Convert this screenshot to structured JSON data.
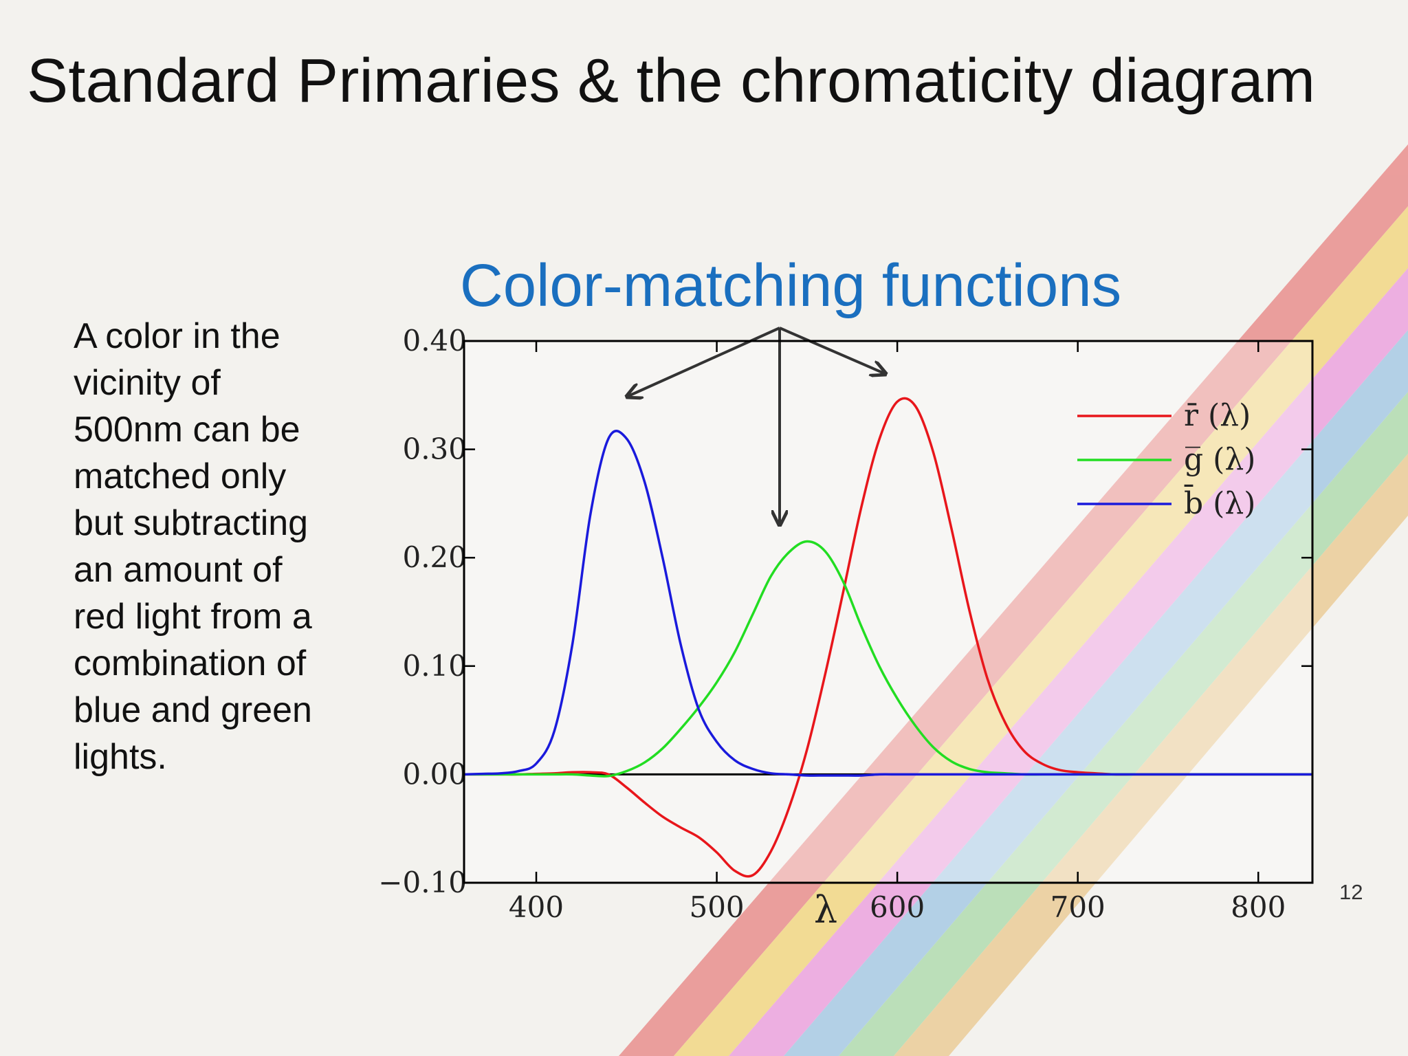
{
  "header": {
    "title": "Standard Primaries & the chromaticity diagram"
  },
  "body": {
    "lines": [
      "A color in the",
      "vicinity of",
      "500nm can be",
      "matched only",
      "but subtracting",
      "an amount of",
      "red light from a",
      "combination of",
      "blue and green",
      "lights."
    ]
  },
  "page_number": "12",
  "chart_data": {
    "type": "line",
    "title": "Color-matching functions",
    "x_label": "λ",
    "x": [
      360,
      370,
      380,
      390,
      400,
      410,
      420,
      430,
      440,
      450,
      460,
      470,
      480,
      490,
      500,
      510,
      520,
      530,
      540,
      550,
      560,
      570,
      580,
      590,
      600,
      610,
      620,
      630,
      640,
      650,
      660,
      670,
      680,
      690,
      700,
      710,
      720,
      730,
      740,
      750,
      760,
      770,
      780,
      790,
      800,
      810,
      820,
      830
    ],
    "series": [
      {
        "name": "r̄ (λ)",
        "color": "#e8161b",
        "values": [
          0,
          0,
          0,
          0,
          0.0005,
          0.001,
          0.002,
          0.002,
          0,
          -0.012,
          -0.026,
          -0.039,
          -0.049,
          -0.058,
          -0.072,
          -0.089,
          -0.093,
          -0.071,
          -0.031,
          0.023,
          0.092,
          0.168,
          0.246,
          0.309,
          0.344,
          0.34,
          0.297,
          0.227,
          0.151,
          0.088,
          0.047,
          0.022,
          0.01,
          0.004,
          0.002,
          0.001,
          0,
          0,
          0,
          0,
          0,
          0,
          0,
          0,
          0,
          0,
          0,
          0
        ]
      },
      {
        "name": "g̅ (λ)",
        "color": "#22dd22",
        "values": [
          0,
          0,
          0,
          0,
          0,
          0,
          0,
          -0.001,
          -0.0015,
          0.003,
          0.011,
          0.024,
          0.042,
          0.062,
          0.085,
          0.113,
          0.148,
          0.183,
          0.205,
          0.215,
          0.206,
          0.178,
          0.137,
          0.1,
          0.07,
          0.045,
          0.025,
          0.012,
          0.005,
          0.002,
          0.001,
          0,
          0,
          0,
          0,
          0,
          0,
          0,
          0,
          0,
          0,
          0,
          0,
          0,
          0,
          0,
          0,
          0
        ]
      },
      {
        "name": "b̄ (λ)",
        "color": "#1a1adc",
        "values": [
          0,
          0.0005,
          0.001,
          0.003,
          0.01,
          0.04,
          0.12,
          0.24,
          0.31,
          0.31,
          0.27,
          0.2,
          0.12,
          0.06,
          0.03,
          0.013,
          0.005,
          0.001,
          0,
          -0.001,
          -0.001,
          -0.001,
          -0.001,
          0,
          0,
          0,
          0,
          0,
          0,
          0,
          0,
          0,
          0,
          0,
          0,
          0,
          0,
          0,
          0,
          0,
          0,
          0,
          0,
          0,
          0,
          0,
          0,
          0
        ]
      }
    ],
    "xlim": [
      360,
      830
    ],
    "ylim": [
      -0.1,
      0.4
    ],
    "xticks": [
      400,
      500,
      600,
      700,
      800
    ],
    "yticks": [
      {
        "value": -0.1,
        "label": "−0.10"
      },
      {
        "value": 0,
        "label": "0.00"
      },
      {
        "value": 0.1,
        "label": "0.10"
      },
      {
        "value": 0.2,
        "label": "0.20"
      },
      {
        "value": 0.3,
        "label": "0.30"
      },
      {
        "value": 0.4,
        "label": "0.40"
      }
    ],
    "legend": "upper right"
  }
}
